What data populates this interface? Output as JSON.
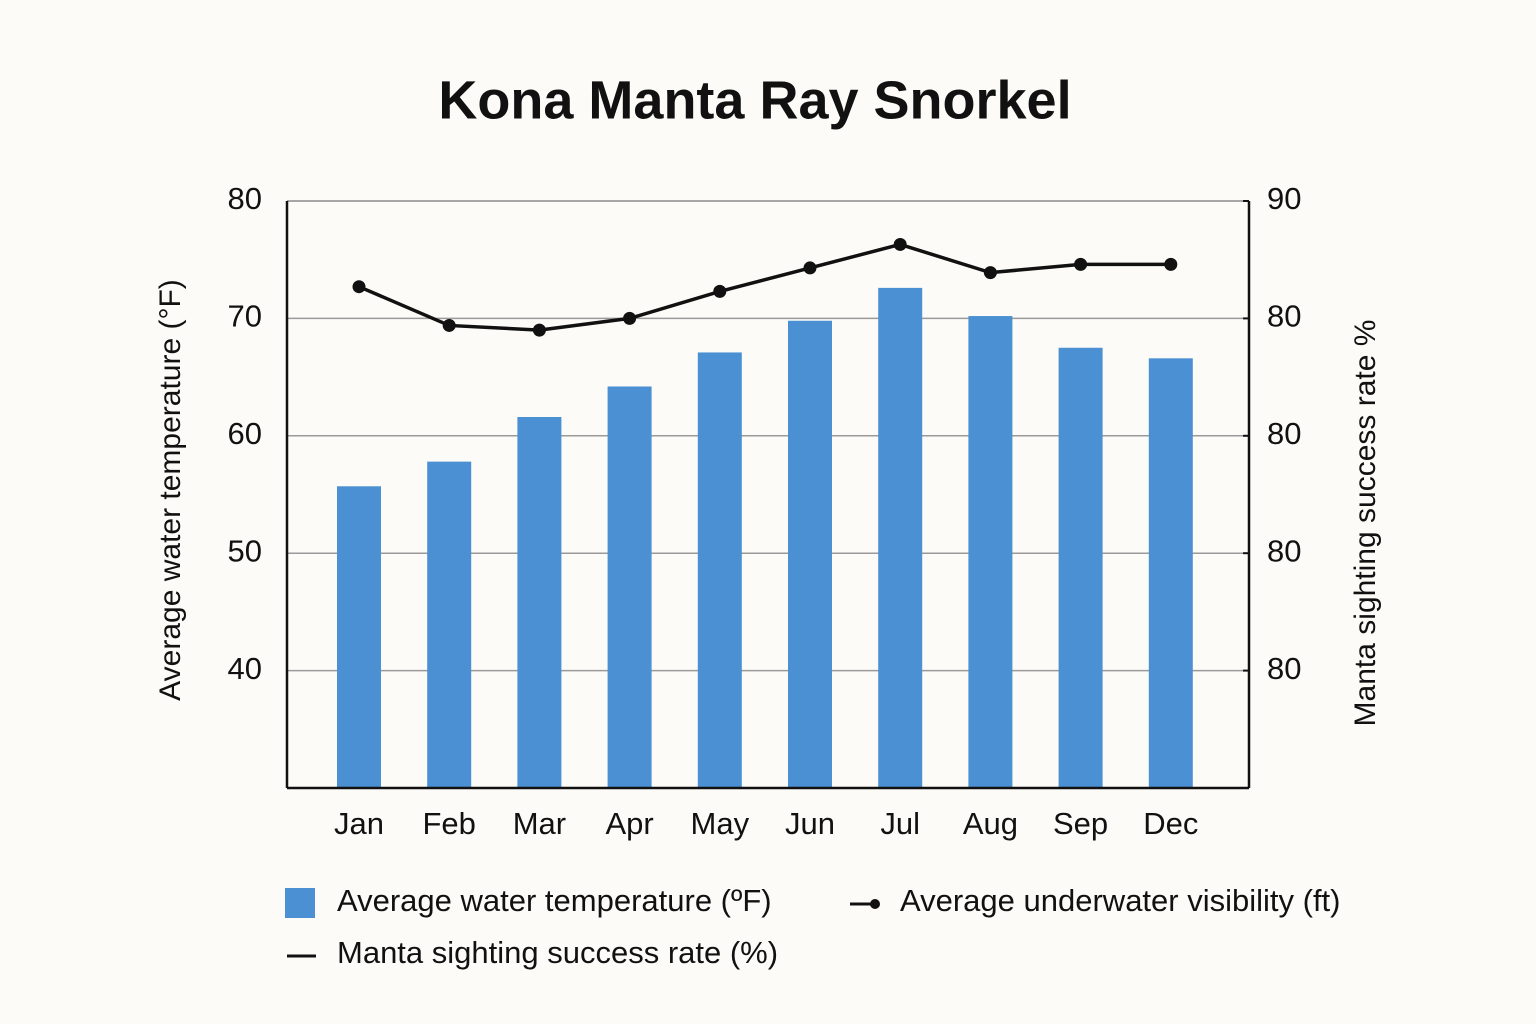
{
  "chart_data": {
    "type": "bar",
    "title": "Kona Manta Ray Snorkel",
    "ylabel": "Average water temperature (°F)",
    "y2label": "Manta sighting success rate %",
    "categories": [
      "Jan",
      "Feb",
      "Mar",
      "Apr",
      "May",
      "Jun",
      "Jul",
      "Aug",
      "Sep",
      "Dec"
    ],
    "series": [
      {
        "name": "Average water temperature (ºF)",
        "type": "bar",
        "color": "#4a90d2",
        "values": [
          55.7,
          57.8,
          61.6,
          64.2,
          67.1,
          69.8,
          72.6,
          70.2,
          67.5,
          66.6
        ]
      },
      {
        "name": "Average underwater visibility (ft)",
        "type": "line",
        "color": "#111111",
        "values": [
          72.7,
          69.4,
          69.0,
          70.0,
          72.3,
          74.3,
          76.3,
          73.9,
          74.6,
          74.6
        ]
      },
      {
        "name": "Manta sighting success rate (%)",
        "type": "line",
        "color": "#111111",
        "axis": "y2",
        "values": [
          null,
          null,
          null,
          null,
          null,
          null,
          null,
          null,
          null,
          null
        ]
      }
    ],
    "ylim": [
      30,
      80
    ],
    "yticks": [
      40,
      50,
      60,
      70,
      80
    ],
    "y2lim": [
      40,
      90
    ],
    "y2ticks": [
      {
        "value": 50,
        "label": "80"
      },
      {
        "value": 60,
        "label": "80"
      },
      {
        "value": 70,
        "label": "80"
      },
      {
        "value": 80,
        "label": "80"
      },
      90
    ],
    "grid": true
  }
}
